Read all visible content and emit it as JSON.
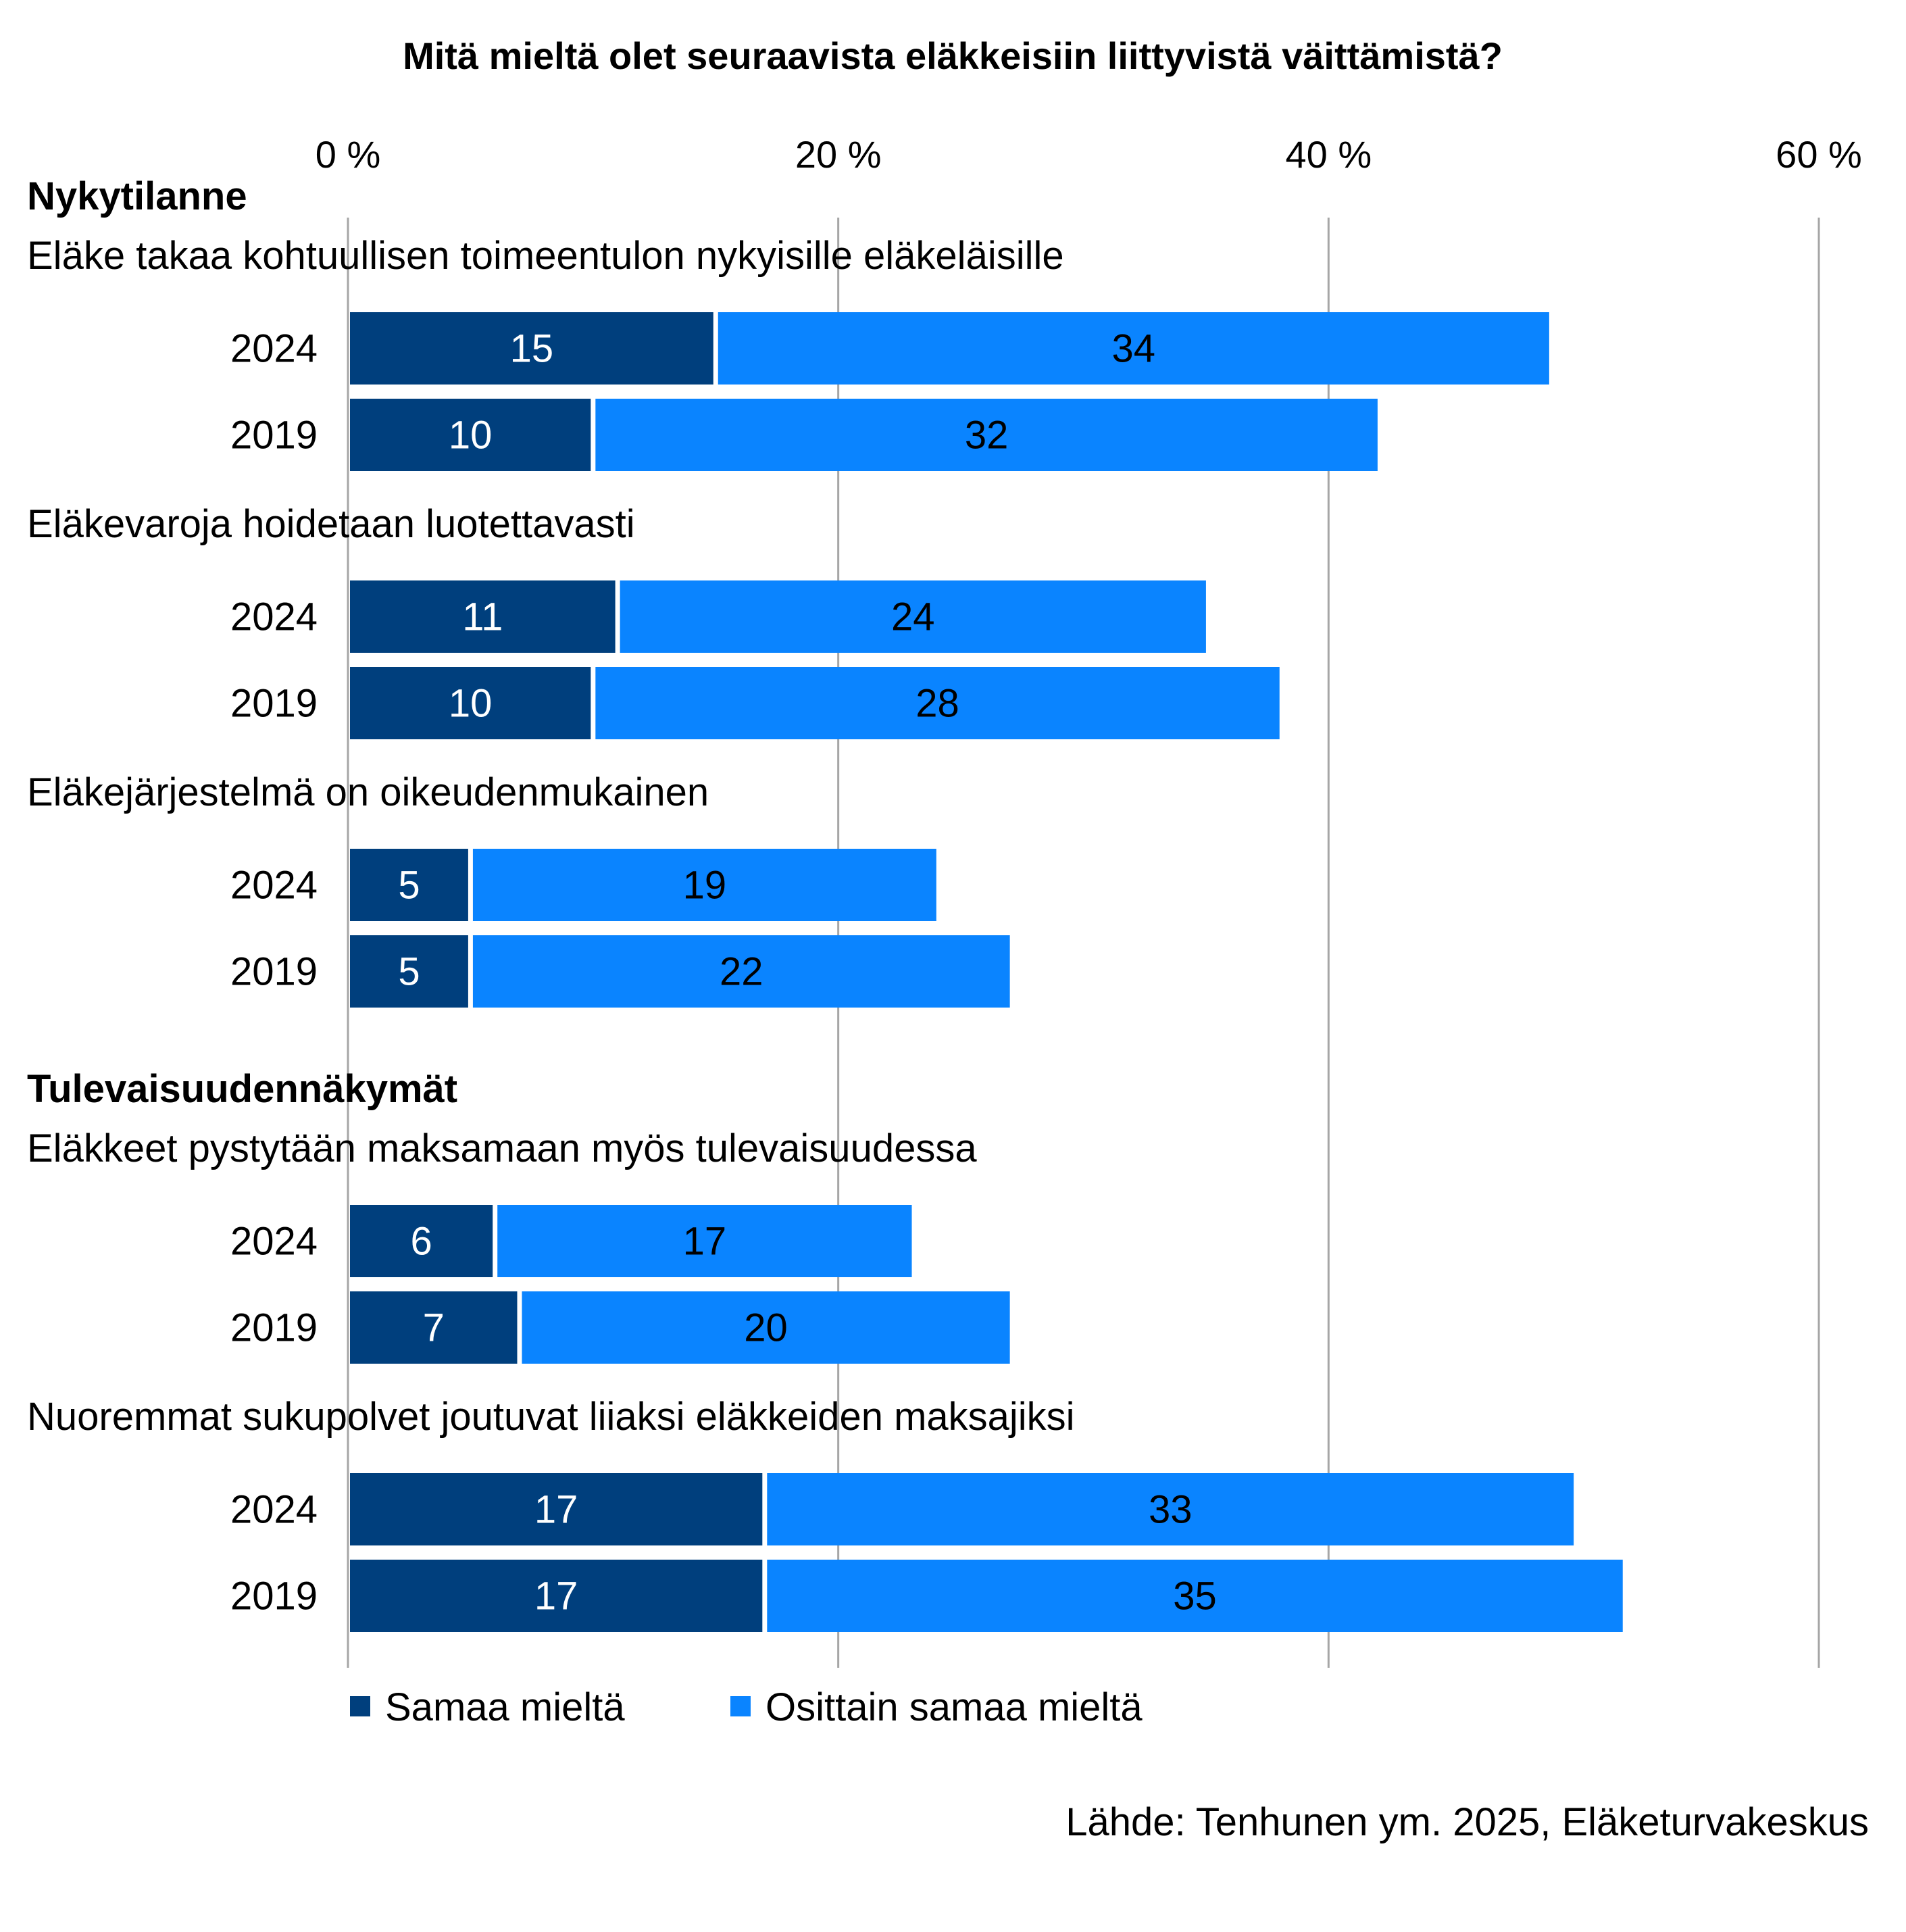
{
  "chart_data": {
    "type": "bar",
    "orientation": "horizontal",
    "stacked": true,
    "title": "Mitä mieltä olet seuraavista eläkkeisiin liittyvistä väittämistä?",
    "xlim": [
      0,
      60
    ],
    "x_ticks": [
      "0 %",
      "20 %",
      "40 %",
      "60 %"
    ],
    "x_tick_values": [
      0,
      20,
      40,
      60
    ],
    "grid": true,
    "legend_position": "bottom",
    "series": [
      {
        "name": "Samaa mieltä",
        "color": "#003f7d"
      },
      {
        "name": "Osittain samaa mieltä",
        "color": "#0a84ff"
      }
    ],
    "sections": [
      {
        "label": "Nykytilanne",
        "groups": [
          {
            "label": "Eläke takaa kohtuullisen toimeentulon nykyisille eläkeläisille",
            "rows": [
              {
                "year": "2024",
                "values": [
                  15,
                  34
                ]
              },
              {
                "year": "2019",
                "values": [
                  10,
                  32
                ]
              }
            ]
          },
          {
            "label": "Eläkevaroja hoidetaan luotettavasti",
            "rows": [
              {
                "year": "2024",
                "values": [
                  11,
                  24
                ]
              },
              {
                "year": "2019",
                "values": [
                  10,
                  28
                ]
              }
            ]
          },
          {
            "label": "Eläkejärjestelmä on oikeudenmukainen",
            "rows": [
              {
                "year": "2024",
                "values": [
                  5,
                  19
                ]
              },
              {
                "year": "2019",
                "values": [
                  5,
                  22
                ]
              }
            ]
          }
        ]
      },
      {
        "label": "Tulevaisuudennäkymät",
        "groups": [
          {
            "label": "Eläkkeet pystytään maksamaan myös tulevaisuudessa",
            "rows": [
              {
                "year": "2024",
                "values": [
                  6,
                  17
                ]
              },
              {
                "year": "2019",
                "values": [
                  7,
                  20
                ]
              }
            ]
          },
          {
            "label": "Nuoremmat sukupolvet joutuvat liiaksi eläkkeiden maksajiksi",
            "rows": [
              {
                "year": "2024",
                "values": [
                  17,
                  33
                ]
              },
              {
                "year": "2019",
                "values": [
                  17,
                  35
                ]
              }
            ]
          }
        ]
      }
    ],
    "source": "Lähde: Tenhunen ym. 2025, Eläketurvakeskus"
  }
}
